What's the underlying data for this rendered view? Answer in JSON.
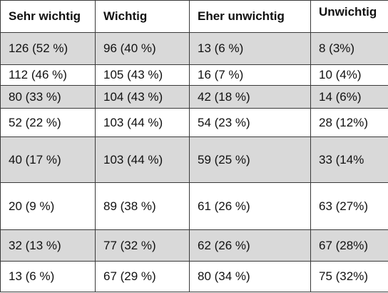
{
  "headers": [
    "Sehr wichtig",
    "Wichtig",
    "Eher unwichtig",
    "Unwichtig"
  ],
  "rows": [
    {
      "cells": [
        "126 (52 %)",
        "96 (40 %)",
        "13 (6 %)",
        "8 (3%)"
      ],
      "shaded": true
    },
    {
      "cells": [
        "112 (46 %)",
        "105 (43 %)",
        "16 (7 %)",
        "10 (4%)"
      ],
      "shaded": false
    },
    {
      "cells": [
        "80 (33 %)",
        "104 (43 %)",
        "42 (18 %)",
        "14 (6%)"
      ],
      "shaded": true
    },
    {
      "cells": [
        "52 (22 %)",
        "103 (44 %)",
        "54 (23 %)",
        "28 (12%)"
      ],
      "shaded": false
    },
    {
      "cells": [
        "40 (17 %)",
        "103 (44 %)",
        "59 (25 %)",
        "33 (14%"
      ],
      "shaded": true
    },
    {
      "cells": [
        "20 (9 %)",
        "89 (38 %)",
        "61 (26 %)",
        "63 (27%)"
      ],
      "shaded": false
    },
    {
      "cells": [
        "32 (13 %)",
        "77 (32 %)",
        "62 (26 %)",
        "67 (28%)"
      ],
      "shaded": true
    },
    {
      "cells": [
        "13 (6 %)",
        "67 (29 %)",
        "80 (34 %)",
        "75 (32%)"
      ],
      "shaded": false
    }
  ]
}
